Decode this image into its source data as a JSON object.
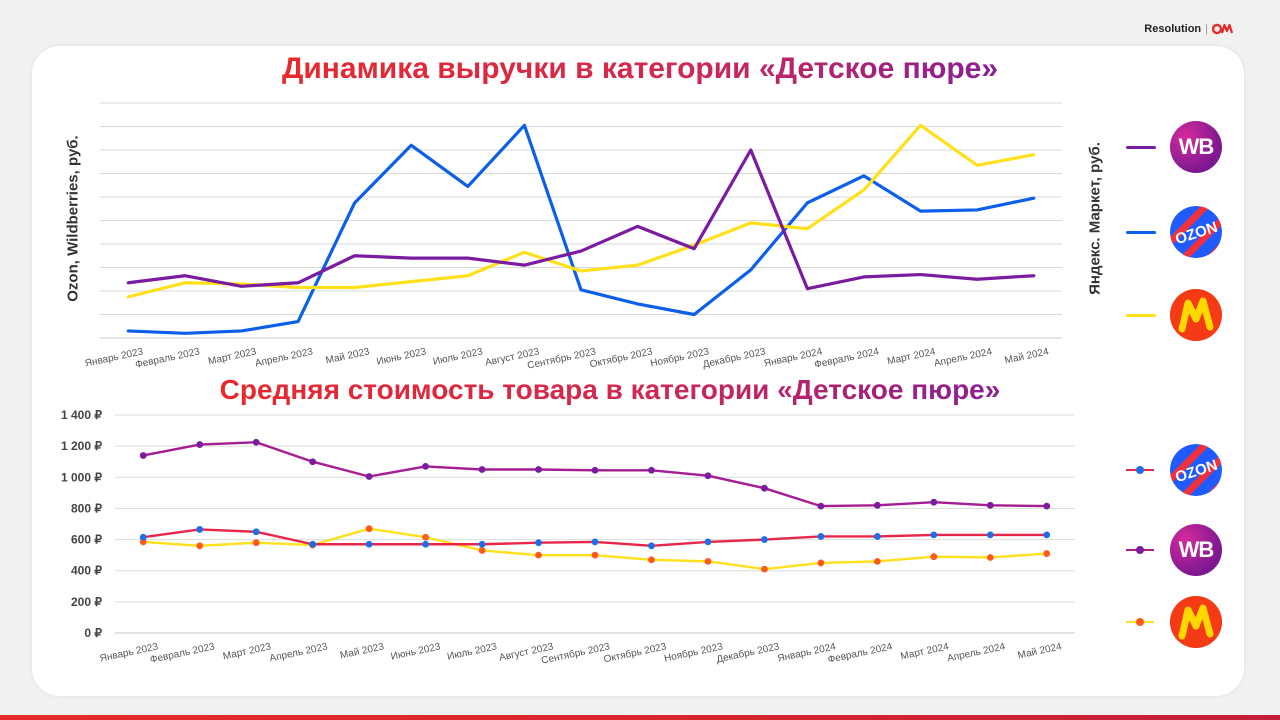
{
  "brand": {
    "name": "Resolution",
    "separator": "|"
  },
  "colors": {
    "wildberries": "#7a1ba0",
    "ozon": "#0b5fe8",
    "yandex": "#ffe01a",
    "price_wb": "#a61c93",
    "price_ozon": "#e8264a",
    "price_yandex": "#ffe01a",
    "marker_ozon": "#1e6fe6",
    "marker_wb": "#7a1ba0",
    "marker_yandex": "#ff5a1a"
  },
  "legend_top": [
    {
      "series": "wildberries",
      "icon": "wb-logo-icon",
      "text": "WB"
    },
    {
      "series": "ozon",
      "icon": "ozon-logo-icon",
      "text": "OZON"
    },
    {
      "series": "yandex",
      "icon": "yandex-market-logo-icon",
      "text": ""
    }
  ],
  "legend_bottom": [
    {
      "series": "ozon",
      "icon": "ozon-logo-icon",
      "text": "OZON"
    },
    {
      "series": "wildberries",
      "icon": "wb-logo-icon",
      "text": "WB"
    },
    {
      "series": "yandex",
      "icon": "yandex-market-logo-icon",
      "text": ""
    }
  ],
  "chart_data": [
    {
      "type": "line",
      "title": "Динамика выручки в категории «Детское пюре»",
      "ylabel_left": "Ozon, Wildberries, руб.",
      "ylabel_right": "Яндекс. Маркет, руб.",
      "categories": [
        "Январь 2023",
        "Февраль 2023",
        "Март 2023",
        "Апрель 2023",
        "Май 2023",
        "Июнь 2023",
        "Июль 2023",
        "Август 2023",
        "Сентябрь 2023",
        "Октябрь 2023",
        "Ноябрь 2023",
        "Декабрь 2023",
        "Январь 2024",
        "Февраль 2024",
        "Март 2024",
        "Апрель 2024",
        "Май 2024"
      ],
      "ylim": [
        0,
        10
      ],
      "grid": true,
      "axis_ticks_labels": false,
      "series": [
        {
          "key": "wildberries",
          "values": [
            2.35,
            2.65,
            2.2,
            2.35,
            3.5,
            3.4,
            3.4,
            3.1,
            3.7,
            4.75,
            3.8,
            8.0,
            2.1,
            2.6,
            2.7,
            2.5,
            2.65
          ]
        },
        {
          "key": "ozon",
          "values": [
            0.3,
            0.2,
            0.3,
            0.7,
            5.75,
            8.2,
            6.45,
            9.05,
            2.05,
            1.45,
            1.0,
            2.9,
            5.75,
            6.9,
            5.4,
            5.45,
            5.95
          ]
        },
        {
          "key": "yandex",
          "values": [
            1.75,
            2.35,
            2.3,
            2.15,
            2.15,
            2.4,
            2.65,
            3.65,
            2.85,
            3.1,
            3.95,
            4.9,
            4.65,
            6.3,
            9.05,
            7.35,
            7.8
          ]
        }
      ]
    },
    {
      "type": "line",
      "title": "Средняя стоимость товара в категории «Детское пюре»",
      "categories": [
        "Январь 2023",
        "Февраль 2023",
        "Март  2023",
        "Апрель 2023",
        "Май 2023",
        "Июнь 2023",
        "Июль 2023",
        "Август 2023",
        "Сентябрь 2023",
        "Октябрь 2023",
        "Ноябрь 2023",
        "Декабрь 2023",
        "Январь 2024",
        "Февраль 2024",
        "Март 2024",
        "Апрель 2024",
        "Май 2024"
      ],
      "ylim": [
        0,
        1400
      ],
      "yticks": [
        0,
        200,
        400,
        600,
        800,
        1000,
        1200,
        1400
      ],
      "ytick_labels": [
        "0 ₽",
        "200 ₽",
        "400 ₽",
        "600 ₽",
        "800 ₽",
        "1 000 ₽",
        "1 200 ₽",
        "1 400 ₽"
      ],
      "grid": true,
      "series": [
        {
          "key": "wildberries",
          "values": [
            1140,
            1210,
            1225,
            1100,
            1005,
            1070,
            1050,
            1050,
            1045,
            1045,
            1010,
            930,
            815,
            820,
            840,
            820,
            815
          ]
        },
        {
          "key": "ozon",
          "values": [
            615,
            665,
            650,
            570,
            570,
            570,
            570,
            580,
            585,
            560,
            585,
            600,
            620,
            620,
            630,
            630,
            630
          ]
        },
        {
          "key": "yandex",
          "values": [
            585,
            560,
            580,
            565,
            670,
            615,
            530,
            500,
            500,
            470,
            460,
            410,
            450,
            460,
            490,
            485,
            510
          ]
        }
      ]
    }
  ]
}
